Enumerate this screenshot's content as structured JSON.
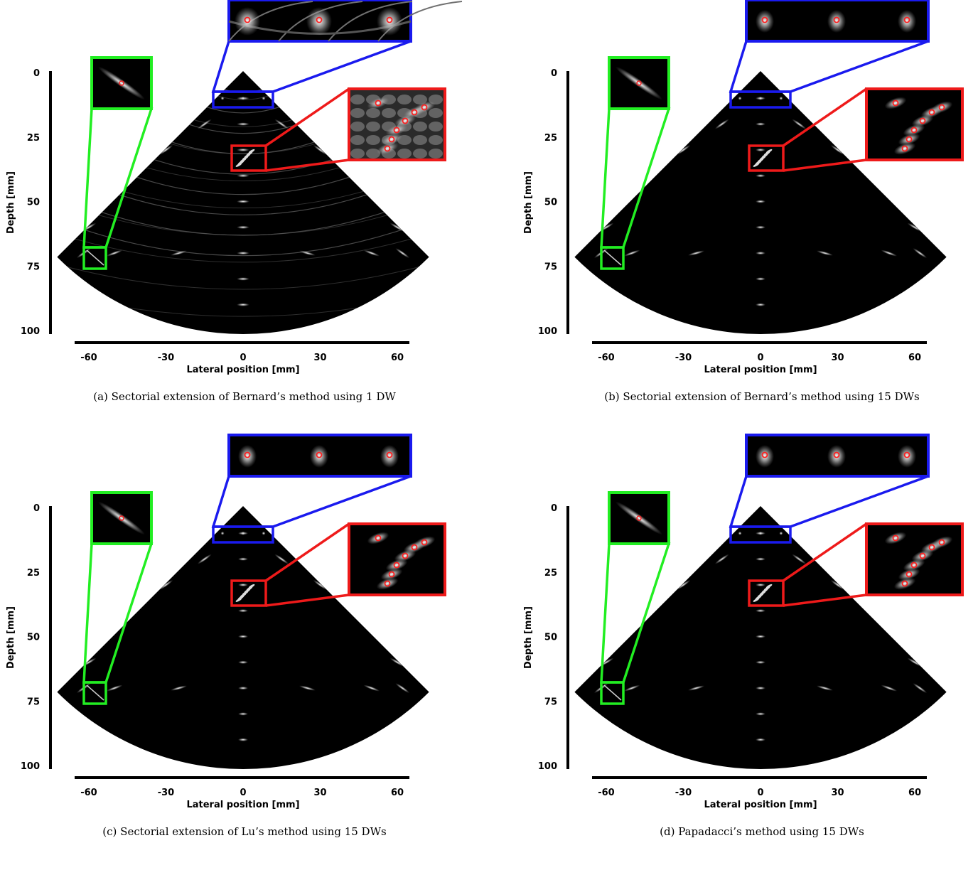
{
  "figure": {
    "subfigures": [
      {
        "id": "a",
        "caption": "(a) Sectorial extension of Bernard’s method using 1 DW",
        "artifacts": "heavy"
      },
      {
        "id": "b",
        "caption": "(b) Sectorial extension of Bernard’s method using 15 DWs",
        "artifacts": "light"
      },
      {
        "id": "c",
        "caption": "(c) Sectorial extension of Lu’s method using 15 DWs",
        "artifacts": "light"
      },
      {
        "id": "d",
        "caption": "(d) Papadacci’s method using 15 DWs",
        "artifacts": "light"
      }
    ]
  },
  "axes": {
    "xlabel": "Lateral position [mm]",
    "ylabel": "Depth [mm]",
    "xticks": [
      "-60",
      "-30",
      "0",
      "30",
      "60"
    ],
    "yticks": [
      "0",
      "25",
      "50",
      "75",
      "100"
    ],
    "xlim": [
      -65,
      65
    ],
    "ylim": [
      0,
      100
    ]
  },
  "zoom_boxes": {
    "colors": {
      "green": "#22ee22",
      "blue": "#1a1aee",
      "red": "#ee1a1a",
      "marker": "#ff2020"
    }
  }
}
